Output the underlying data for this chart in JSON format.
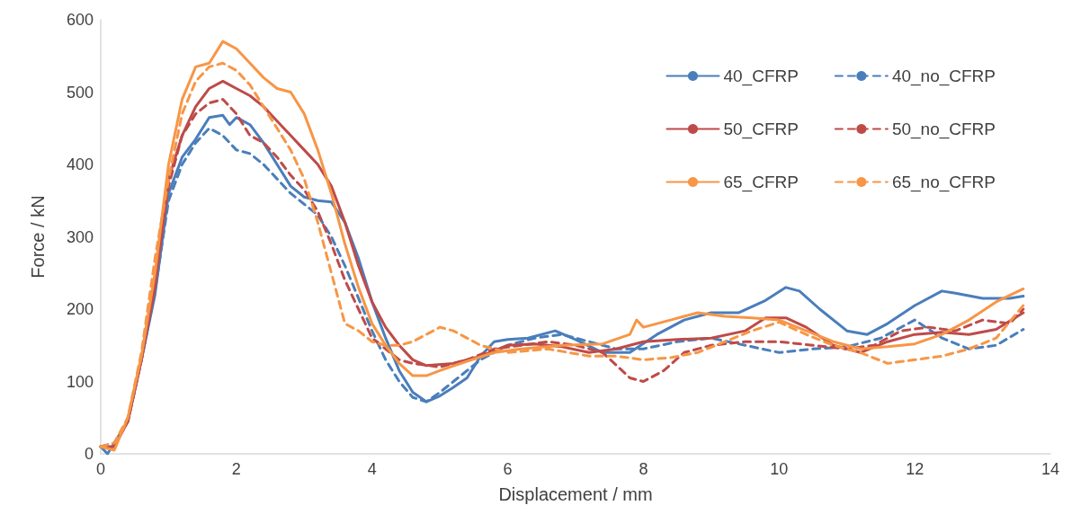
{
  "chart_data": {
    "type": "line",
    "xlabel": "Displacement / mm",
    "ylabel": "Force / kN",
    "xlim": [
      0,
      14
    ],
    "xticks": [
      0,
      2,
      4,
      6,
      8,
      10,
      12,
      14
    ],
    "ylim": [
      0,
      600
    ],
    "yticks": [
      0,
      100,
      200,
      300,
      400,
      500,
      600
    ],
    "grid": false,
    "legend": "top right",
    "marker": "none",
    "series": [
      {
        "name": "40_CFRP",
        "color": "#4a7ebb",
        "line_style": "solid",
        "x": [
          0,
          0.1,
          0.2,
          0.4,
          0.6,
          0.8,
          1.0,
          1.2,
          1.4,
          1.6,
          1.8,
          1.9,
          2.0,
          2.2,
          2.4,
          2.6,
          2.8,
          3.0,
          3.2,
          3.4,
          3.6,
          3.8,
          4.0,
          4.2,
          4.4,
          4.6,
          4.8,
          5.0,
          5.2,
          5.4,
          5.6,
          5.8,
          6.0,
          6.3,
          6.7,
          7.0,
          7.4,
          7.8,
          8.2,
          8.6,
          9.0,
          9.4,
          9.8,
          10.1,
          10.3,
          10.6,
          11.0,
          11.3,
          11.6,
          12.0,
          12.4,
          12.6,
          13.0,
          13.4,
          13.6
        ],
        "values": [
          10,
          0,
          15,
          45,
          130,
          220,
          360,
          410,
          435,
          465,
          468,
          455,
          465,
          455,
          430,
          400,
          370,
          355,
          350,
          348,
          320,
          270,
          210,
          160,
          115,
          85,
          72,
          80,
          92,
          105,
          135,
          155,
          158,
          160,
          170,
          158,
          140,
          140,
          165,
          185,
          195,
          195,
          212,
          230,
          225,
          200,
          170,
          165,
          180,
          205,
          225,
          222,
          215,
          215,
          218
        ]
      },
      {
        "name": "40_no_CFRP",
        "color": "#4a7ebb",
        "line_style": "dashed",
        "x": [
          0,
          0.2,
          0.4,
          0.6,
          0.8,
          1.0,
          1.2,
          1.4,
          1.6,
          1.8,
          2.0,
          2.2,
          2.4,
          2.6,
          2.8,
          3.0,
          3.2,
          3.4,
          3.6,
          3.8,
          4.0,
          4.2,
          4.4,
          4.6,
          4.8,
          5.0,
          5.2,
          5.4,
          5.6,
          6.0,
          6.4,
          6.8,
          7.2,
          7.6,
          8.0,
          8.5,
          9.0,
          9.5,
          10.0,
          10.5,
          11.0,
          11.5,
          12.0,
          12.4,
          12.8,
          13.2,
          13.6
        ],
        "values": [
          10,
          15,
          45,
          130,
          225,
          350,
          400,
          430,
          450,
          440,
          420,
          415,
          400,
          380,
          360,
          345,
          330,
          300,
          260,
          215,
          170,
          130,
          100,
          78,
          72,
          85,
          100,
          115,
          130,
          150,
          160,
          165,
          155,
          145,
          145,
          155,
          160,
          150,
          140,
          145,
          148,
          160,
          185,
          160,
          145,
          150,
          172
        ]
      },
      {
        "name": "50_CFRP",
        "color": "#be4b48",
        "line_style": "solid",
        "x": [
          0,
          0.2,
          0.4,
          0.6,
          0.8,
          1.0,
          1.2,
          1.4,
          1.6,
          1.8,
          2.0,
          2.2,
          2.4,
          2.6,
          2.8,
          3.0,
          3.2,
          3.4,
          3.6,
          3.8,
          4.0,
          4.2,
          4.4,
          4.6,
          4.8,
          5.2,
          5.6,
          6.0,
          6.4,
          6.8,
          7.2,
          7.6,
          8.0,
          8.5,
          9.0,
          9.5,
          9.8,
          10.1,
          10.4,
          10.8,
          11.2,
          11.6,
          12.0,
          12.4,
          12.8,
          13.2,
          13.6
        ],
        "values": [
          10,
          10,
          45,
          130,
          230,
          380,
          440,
          480,
          505,
          515,
          505,
          495,
          480,
          460,
          440,
          420,
          400,
          370,
          320,
          260,
          210,
          175,
          150,
          130,
          122,
          125,
          135,
          150,
          152,
          148,
          140,
          145,
          155,
          158,
          160,
          170,
          188,
          188,
          175,
          150,
          140,
          155,
          165,
          168,
          165,
          172,
          195
        ]
      },
      {
        "name": "50_no_CFRP",
        "color": "#be4b48",
        "line_style": "dashed",
        "x": [
          0,
          0.2,
          0.4,
          0.6,
          0.8,
          1.0,
          1.2,
          1.4,
          1.6,
          1.8,
          2.0,
          2.2,
          2.4,
          2.6,
          2.8,
          3.0,
          3.2,
          3.4,
          3.6,
          3.8,
          4.0,
          4.2,
          4.4,
          4.6,
          5.0,
          5.4,
          5.8,
          6.2,
          6.6,
          7.0,
          7.4,
          7.8,
          8.0,
          8.3,
          8.6,
          9.0,
          9.5,
          10.0,
          10.5,
          11.0,
          11.4,
          11.8,
          12.2,
          12.6,
          13.0,
          13.4,
          13.6
        ],
        "values": [
          10,
          10,
          45,
          130,
          240,
          370,
          440,
          470,
          485,
          490,
          470,
          440,
          430,
          410,
          385,
          365,
          335,
          290,
          240,
          200,
          160,
          145,
          130,
          125,
          120,
          130,
          145,
          150,
          155,
          150,
          140,
          105,
          100,
          115,
          140,
          150,
          155,
          155,
          150,
          145,
          150,
          170,
          175,
          170,
          185,
          180,
          200
        ]
      },
      {
        "name": "65_CFRP",
        "color": "#f79646",
        "line_style": "solid",
        "x": [
          0,
          0.2,
          0.4,
          0.6,
          0.8,
          1.0,
          1.2,
          1.4,
          1.6,
          1.8,
          2.0,
          2.2,
          2.4,
          2.6,
          2.8,
          3.0,
          3.2,
          3.4,
          3.6,
          3.8,
          4.0,
          4.2,
          4.4,
          4.6,
          4.8,
          5.0,
          5.4,
          5.8,
          6.2,
          6.8,
          7.4,
          7.8,
          7.9,
          8.0,
          8.4,
          8.8,
          9.2,
          9.6,
          10.0,
          10.4,
          10.8,
          11.2,
          11.6,
          12.0,
          12.4,
          12.8,
          13.2,
          13.6
        ],
        "values": [
          10,
          5,
          50,
          135,
          250,
          400,
          490,
          535,
          540,
          570,
          560,
          540,
          520,
          505,
          500,
          470,
          420,
          360,
          290,
          230,
          180,
          150,
          125,
          108,
          108,
          115,
          128,
          140,
          145,
          150,
          152,
          165,
          185,
          175,
          185,
          195,
          190,
          188,
          185,
          170,
          155,
          145,
          148,
          152,
          165,
          185,
          210,
          228
        ]
      },
      {
        "name": "65_no_CFRP",
        "color": "#f79646",
        "line_style": "dashed",
        "x": [
          0,
          0.2,
          0.4,
          0.6,
          0.8,
          1.0,
          1.2,
          1.4,
          1.6,
          1.8,
          2.0,
          2.2,
          2.4,
          2.6,
          2.8,
          3.0,
          3.2,
          3.4,
          3.6,
          3.8,
          4.0,
          4.2,
          4.4,
          4.6,
          4.8,
          5.0,
          5.2,
          5.6,
          6.0,
          6.6,
          7.2,
          7.6,
          8.0,
          8.4,
          8.8,
          9.2,
          9.6,
          10.0,
          10.4,
          10.8,
          11.2,
          11.6,
          12.0,
          12.4,
          12.8,
          13.2,
          13.6
        ],
        "values": [
          10,
          15,
          50,
          140,
          270,
          380,
          470,
          515,
          535,
          540,
          530,
          510,
          480,
          450,
          420,
          380,
          320,
          250,
          180,
          170,
          155,
          150,
          150,
          155,
          165,
          175,
          170,
          150,
          140,
          145,
          135,
          135,
          130,
          133,
          140,
          155,
          170,
          182,
          165,
          150,
          140,
          125,
          130,
          135,
          145,
          160,
          205
        ]
      }
    ]
  }
}
